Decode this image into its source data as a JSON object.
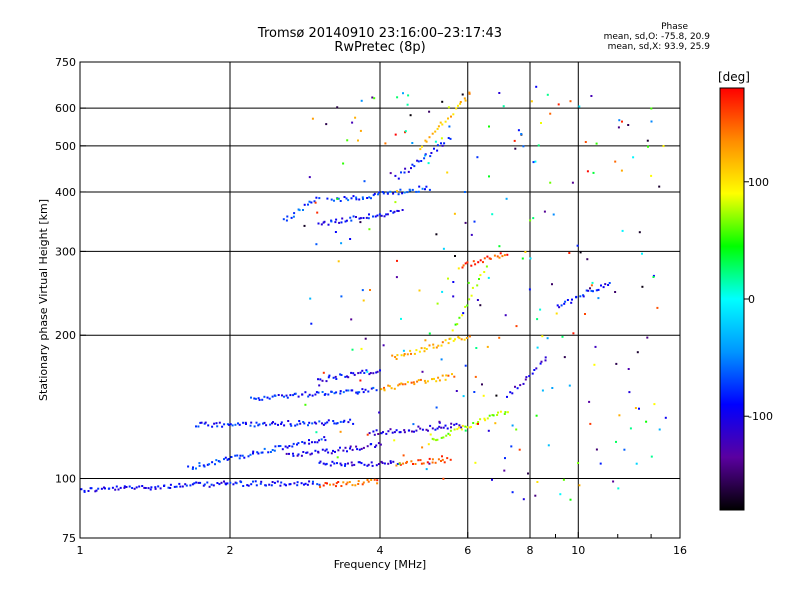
{
  "title": {
    "line1": "Tromsø 20140910 23:16:00–23:17:43",
    "line2": "RwPretec (8p)"
  },
  "phase_stats": {
    "heading": "Phase",
    "mean_o": "mean, sd,O:  -75.8, 20.9",
    "mean_x": "mean, sd,X:  93.9, 25.9"
  },
  "colorbar": {
    "unit": "[deg]",
    "ticks": [
      "100",
      "0",
      "-100"
    ],
    "tick_values": [
      100,
      0,
      -100
    ],
    "range": [
      -180,
      180
    ],
    "colors": [
      "#000000",
      "#5a00a0",
      "#0000ff",
      "#0096ff",
      "#00ffff",
      "#00ff00",
      "#ffff00",
      "#ff8c00",
      "#ff0000"
    ]
  },
  "chart_data": {
    "type": "scatter",
    "title": "Tromsø 20140910 23:16:00–23:17:43 RwPretec (8p)",
    "xlabel": "Frequency [MHz]",
    "ylabel": "Stationary phase Virtual Height [km]",
    "x_scale": "log",
    "y_scale": "log",
    "xlim": [
      1,
      16
    ],
    "ylim": [
      75,
      750
    ],
    "x_ticks": [
      1,
      2,
      4,
      6,
      8,
      10,
      16
    ],
    "x_minor_ticks": [
      9,
      12,
      14
    ],
    "y_ticks": [
      75,
      100,
      200,
      300,
      400,
      500,
      600,
      750
    ],
    "grid_x": [
      2,
      4,
      6,
      8,
      10
    ],
    "grid_y": [
      100,
      200,
      300,
      400,
      500,
      600
    ],
    "color_by": "phase_deg",
    "traces": [
      {
        "f": [
          1.0,
          1.95
        ],
        "h": [
          95,
          98
        ],
        "phase": -95
      },
      {
        "f": [
          1.95,
          3.0
        ],
        "h": [
          98,
          98
        ],
        "phase": -90
      },
      {
        "f": [
          3.0,
          3.95
        ],
        "h": [
          97,
          99
        ],
        "phase": 150
      },
      {
        "f": [
          3.0,
          4.3
        ],
        "h": [
          108,
          108
        ],
        "phase": -100
      },
      {
        "f": [
          4.3,
          5.5
        ],
        "h": [
          108,
          110
        ],
        "phase": 155
      },
      {
        "f": [
          1.65,
          3.1
        ],
        "h": [
          106,
          122
        ],
        "phase": -80
      },
      {
        "f": [
          1.7,
          3.5
        ],
        "h": [
          130,
          132
        ],
        "phase": -85
      },
      {
        "f": [
          2.2,
          3.9
        ],
        "h": [
          148,
          155
        ],
        "phase": -80
      },
      {
        "f": [
          2.6,
          4.0
        ],
        "h": [
          112,
          118
        ],
        "phase": -105
      },
      {
        "f": [
          3.0,
          4.0
        ],
        "h": [
          162,
          170
        ],
        "phase": -100
      },
      {
        "f": [
          3.8,
          5.8
        ],
        "h": [
          125,
          130
        ],
        "phase": -110
      },
      {
        "f": [
          4.0,
          5.6
        ],
        "h": [
          155,
          165
        ],
        "phase": 130
      },
      {
        "f": [
          4.2,
          6.0
        ],
        "h": [
          180,
          200
        ],
        "phase": 120
      },
      {
        "f": [
          5.0,
          7.2
        ],
        "h": [
          120,
          140
        ],
        "phase": 80
      },
      {
        "f": [
          5.5,
          6.5
        ],
        "h": [
          200,
          280
        ],
        "phase": 70
      },
      {
        "f": [
          2.55,
          3.0
        ],
        "h": [
          350,
          390
        ],
        "phase": -70
      },
      {
        "f": [
          3.0,
          4.4
        ],
        "h": [
          345,
          365
        ],
        "phase": -90
      },
      {
        "f": [
          3.2,
          5.0
        ],
        "h": [
          385,
          410
        ],
        "phase": -75
      },
      {
        "f": [
          4.3,
          5.5
        ],
        "h": [
          430,
          520
        ],
        "phase": -95
      },
      {
        "f": [
          4.8,
          6.0
        ],
        "h": [
          500,
          640
        ],
        "phase": 120
      },
      {
        "f": [
          5.8,
          7.2
        ],
        "h": [
          280,
          300
        ],
        "phase": 160
      },
      {
        "f": [
          7.2,
          8.6
        ],
        "h": [
          150,
          180
        ],
        "phase": -110
      },
      {
        "f": [
          9.0,
          11.5
        ],
        "h": [
          230,
          260
        ],
        "phase": -90
      }
    ]
  }
}
